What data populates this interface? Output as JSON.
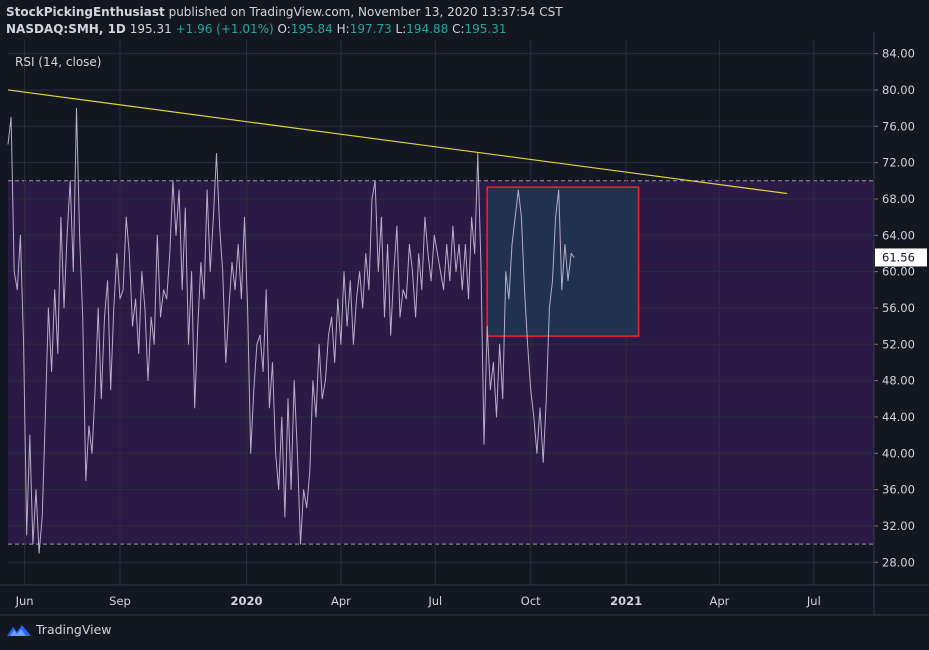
{
  "header": {
    "author": "StockPickingEnthusiast",
    "published": " published on TradingView.com, November 13, 2020 13:37:54 CST",
    "symbol": "NASDAQ:SMH, 1D",
    "last": "195.31",
    "change": "+1.96 (+1.01%)",
    "o_label": "O:",
    "o_value": "195.84",
    "h_label": "H:",
    "h_value": "197.73",
    "l_label": "L:",
    "l_value": "194.88",
    "c_label": "C:",
    "c_value": "195.31"
  },
  "footer": {
    "brand": "TradingView",
    "logo_icon": "tradingview-logo-icon"
  },
  "colors": {
    "background": "#131722",
    "band": "#2a1b46",
    "rsi_line": "#b6adc8",
    "trendline": "#e4d53a",
    "box_border": "#e5232f",
    "box_fill": "#213150",
    "grid": "#2a2e39",
    "text": "#d1d4dc",
    "green": "#26a69a"
  },
  "chart_data": {
    "type": "line",
    "title": "RSI (14, close)",
    "y_axis": {
      "ticks": [
        "84.00",
        "80.00",
        "76.00",
        "72.00",
        "68.00",
        "64.00",
        "60.00",
        "56.00",
        "52.00",
        "48.00",
        "44.00",
        "40.00",
        "36.00",
        "32.00",
        "28.00"
      ],
      "range": [
        25.5,
        85.5
      ],
      "current_value_label": "61.56"
    },
    "x_axis": {
      "ticks": [
        "Jun",
        "Sep",
        "2020",
        "Apr",
        "Jul",
        "Oct",
        "2021",
        "Apr",
        "Jul"
      ],
      "bold_ticks": [
        "2020",
        "2021"
      ],
      "tick_dates": [
        "2019-06-01",
        "2019-09-01",
        "2020-01-01",
        "2020-04-01",
        "2020-07-01",
        "2020-10-01",
        "2021-01-01",
        "2021-04-01",
        "2021-07-01"
      ],
      "range": [
        "2019-05-16",
        "2021-08-28"
      ]
    },
    "levels": {
      "upper": 70,
      "lower": 30,
      "band_style": "filled purple band between 30 and 70, dashed borders"
    },
    "series": [
      {
        "points": [
          [
            "2019-05-16",
            74
          ],
          [
            "2019-05-19",
            77
          ],
          [
            "2019-05-22",
            60
          ],
          [
            "2019-05-25",
            58
          ],
          [
            "2019-05-28",
            64
          ],
          [
            "2019-05-31",
            52
          ],
          [
            "2019-06-03",
            31
          ],
          [
            "2019-06-06",
            42
          ],
          [
            "2019-06-09",
            30
          ],
          [
            "2019-06-12",
            36
          ],
          [
            "2019-06-15",
            29
          ],
          [
            "2019-06-18",
            33
          ],
          [
            "2019-06-21",
            44
          ],
          [
            "2019-06-24",
            56
          ],
          [
            "2019-06-27",
            49
          ],
          [
            "2019-06-30",
            58
          ],
          [
            "2019-07-03",
            51
          ],
          [
            "2019-07-06",
            66
          ],
          [
            "2019-07-09",
            56
          ],
          [
            "2019-07-12",
            64
          ],
          [
            "2019-07-15",
            70
          ],
          [
            "2019-07-18",
            60
          ],
          [
            "2019-07-21",
            78
          ],
          [
            "2019-07-24",
            64
          ],
          [
            "2019-07-27",
            55
          ],
          [
            "2019-07-30",
            37
          ],
          [
            "2019-08-02",
            43
          ],
          [
            "2019-08-05",
            40
          ],
          [
            "2019-08-08",
            47
          ],
          [
            "2019-08-11",
            56
          ],
          [
            "2019-08-14",
            46
          ],
          [
            "2019-08-17",
            55
          ],
          [
            "2019-08-20",
            59
          ],
          [
            "2019-08-23",
            47
          ],
          [
            "2019-08-26",
            56
          ],
          [
            "2019-08-29",
            62
          ],
          [
            "2019-09-01",
            57
          ],
          [
            "2019-09-04",
            58
          ],
          [
            "2019-09-07",
            66
          ],
          [
            "2019-09-10",
            62
          ],
          [
            "2019-09-13",
            54
          ],
          [
            "2019-09-16",
            57
          ],
          [
            "2019-09-19",
            51
          ],
          [
            "2019-09-22",
            60
          ],
          [
            "2019-09-25",
            56
          ],
          [
            "2019-09-28",
            48
          ],
          [
            "2019-10-01",
            55
          ],
          [
            "2019-10-04",
            52
          ],
          [
            "2019-10-07",
            64
          ],
          [
            "2019-10-10",
            55
          ],
          [
            "2019-10-13",
            58
          ],
          [
            "2019-10-16",
            57
          ],
          [
            "2019-10-19",
            62
          ],
          [
            "2019-10-22",
            70
          ],
          [
            "2019-10-25",
            64
          ],
          [
            "2019-10-28",
            69
          ],
          [
            "2019-10-31",
            58
          ],
          [
            "2019-11-03",
            67
          ],
          [
            "2019-11-06",
            52
          ],
          [
            "2019-11-09",
            60
          ],
          [
            "2019-11-12",
            45
          ],
          [
            "2019-11-15",
            54
          ],
          [
            "2019-11-18",
            61
          ],
          [
            "2019-11-21",
            57
          ],
          [
            "2019-11-24",
            69
          ],
          [
            "2019-11-27",
            60
          ],
          [
            "2019-11-30",
            66
          ],
          [
            "2019-12-03",
            73
          ],
          [
            "2019-12-06",
            65
          ],
          [
            "2019-12-09",
            60
          ],
          [
            "2019-12-12",
            50
          ],
          [
            "2019-12-15",
            56
          ],
          [
            "2019-12-18",
            61
          ],
          [
            "2019-12-21",
            58
          ],
          [
            "2019-12-24",
            63
          ],
          [
            "2019-12-27",
            57
          ],
          [
            "2019-12-30",
            66
          ],
          [
            "2020-01-02",
            56
          ],
          [
            "2020-01-05",
            40
          ],
          [
            "2020-01-08",
            47
          ],
          [
            "2020-01-11",
            52
          ],
          [
            "2020-01-14",
            53
          ],
          [
            "2020-01-17",
            49
          ],
          [
            "2020-01-20",
            58
          ],
          [
            "2020-01-23",
            45
          ],
          [
            "2020-01-26",
            50
          ],
          [
            "2020-01-29",
            40
          ],
          [
            "2020-02-01",
            36
          ],
          [
            "2020-02-04",
            44
          ],
          [
            "2020-02-07",
            33
          ],
          [
            "2020-02-10",
            46
          ],
          [
            "2020-02-13",
            36
          ],
          [
            "2020-02-16",
            48
          ],
          [
            "2020-02-19",
            40
          ],
          [
            "2020-02-22",
            30
          ],
          [
            "2020-02-25",
            36
          ],
          [
            "2020-02-28",
            34
          ],
          [
            "2020-03-02",
            38
          ],
          [
            "2020-03-05",
            48
          ],
          [
            "2020-03-08",
            44
          ],
          [
            "2020-03-11",
            52
          ],
          [
            "2020-03-14",
            46
          ],
          [
            "2020-03-17",
            48
          ],
          [
            "2020-03-20",
            53
          ],
          [
            "2020-03-23",
            55
          ],
          [
            "2020-03-26",
            50
          ],
          [
            "2020-03-29",
            57
          ],
          [
            "2020-04-01",
            52
          ],
          [
            "2020-04-04",
            60
          ],
          [
            "2020-04-07",
            54
          ],
          [
            "2020-04-10",
            59
          ],
          [
            "2020-04-13",
            52
          ],
          [
            "2020-04-16",
            57
          ],
          [
            "2020-04-19",
            60
          ],
          [
            "2020-04-22",
            56
          ],
          [
            "2020-04-25",
            62
          ],
          [
            "2020-04-28",
            58
          ],
          [
            "2020-05-01",
            68
          ],
          [
            "2020-05-04",
            70
          ],
          [
            "2020-05-07",
            60
          ],
          [
            "2020-05-10",
            66
          ],
          [
            "2020-05-13",
            55
          ],
          [
            "2020-05-16",
            63
          ],
          [
            "2020-05-19",
            53
          ],
          [
            "2020-05-22",
            60
          ],
          [
            "2020-05-25",
            65
          ],
          [
            "2020-05-28",
            55
          ],
          [
            "2020-05-31",
            58
          ],
          [
            "2020-06-03",
            57
          ],
          [
            "2020-06-06",
            63
          ],
          [
            "2020-06-09",
            60
          ],
          [
            "2020-06-12",
            55
          ],
          [
            "2020-06-15",
            62
          ],
          [
            "2020-06-18",
            58
          ],
          [
            "2020-06-21",
            66
          ],
          [
            "2020-06-24",
            62
          ],
          [
            "2020-06-27",
            59
          ],
          [
            "2020-06-30",
            64
          ],
          [
            "2020-07-03",
            62
          ],
          [
            "2020-07-06",
            60
          ],
          [
            "2020-07-09",
            58
          ],
          [
            "2020-07-12",
            63
          ],
          [
            "2020-07-15",
            59
          ],
          [
            "2020-07-18",
            65
          ],
          [
            "2020-07-21",
            60
          ],
          [
            "2020-07-24",
            63
          ],
          [
            "2020-07-27",
            58
          ],
          [
            "2020-07-30",
            63
          ],
          [
            "2020-08-02",
            57
          ],
          [
            "2020-08-05",
            66
          ],
          [
            "2020-08-08",
            62
          ],
          [
            "2020-08-11",
            73
          ],
          [
            "2020-08-14",
            61
          ],
          [
            "2020-08-17",
            41
          ],
          [
            "2020-08-20",
            54
          ],
          [
            "2020-08-23",
            47
          ],
          [
            "2020-08-26",
            50
          ],
          [
            "2020-08-29",
            44
          ],
          [
            "2020-09-01",
            52
          ],
          [
            "2020-09-04",
            46
          ],
          [
            "2020-09-07",
            60
          ],
          [
            "2020-09-10",
            57
          ],
          [
            "2020-09-13",
            63
          ],
          [
            "2020-09-16",
            66
          ],
          [
            "2020-09-19",
            69
          ],
          [
            "2020-09-22",
            66
          ],
          [
            "2020-09-25",
            58
          ],
          [
            "2020-09-28",
            52
          ],
          [
            "2020-10-01",
            47
          ],
          [
            "2020-10-04",
            44
          ],
          [
            "2020-10-07",
            40
          ],
          [
            "2020-10-10",
            45
          ],
          [
            "2020-10-13",
            39
          ],
          [
            "2020-10-16",
            46
          ],
          [
            "2020-10-19",
            56
          ],
          [
            "2020-10-22",
            59
          ],
          [
            "2020-10-25",
            66
          ],
          [
            "2020-10-28",
            69
          ],
          [
            "2020-10-31",
            58
          ],
          [
            "2020-11-03",
            63
          ],
          [
            "2020-11-06",
            59
          ],
          [
            "2020-11-09",
            62
          ],
          [
            "2020-11-12",
            61.56
          ]
        ]
      }
    ],
    "annotations": [
      {
        "type": "trendline",
        "from": [
          "2019-05-16",
          80.0
        ],
        "to": [
          "2021-06-05",
          68.6
        ]
      },
      {
        "type": "rectangle",
        "x_range": [
          "2020-08-20",
          "2021-01-13"
        ],
        "y_range": [
          52.9,
          69.3
        ]
      }
    ]
  }
}
